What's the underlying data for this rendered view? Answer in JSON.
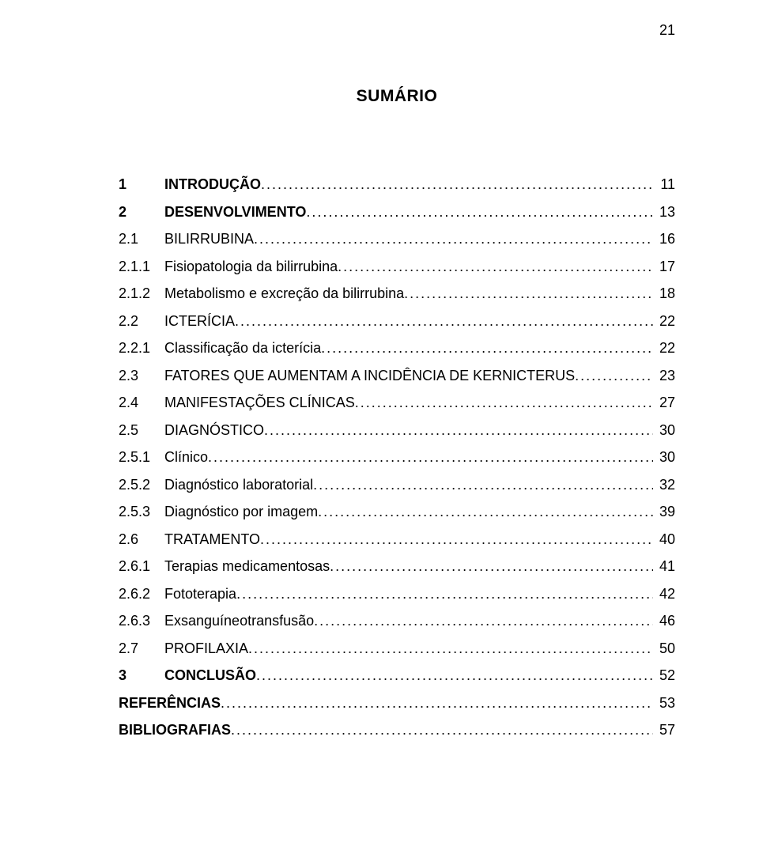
{
  "page_number": "21",
  "title": "SUMÁRIO",
  "toc": [
    {
      "num": "1",
      "label": "INTRODUÇÃO",
      "page": "11",
      "bold": true
    },
    {
      "num": "2",
      "label": "DESENVOLVIMENTO",
      "page": "13",
      "bold": true
    },
    {
      "num": "2.1",
      "label": "BILIRRUBINA",
      "page": "16",
      "bold": false
    },
    {
      "num": "2.1.1",
      "label": "Fisiopatologia da bilirrubina",
      "page": "17",
      "bold": false
    },
    {
      "num": "2.1.2",
      "label": "Metabolismo e excreção da bilirrubina",
      "page": "18",
      "bold": false
    },
    {
      "num": "2.2",
      "label": "ICTERÍCIA",
      "page": "22",
      "bold": false
    },
    {
      "num": "2.2.1",
      "label": "Classificação da icterícia",
      "page": "22",
      "bold": false
    },
    {
      "num": "2.3",
      "label": "FATORES QUE AUMENTAM A INCIDÊNCIA DE KERNICTERUS",
      "page": "23",
      "bold": false
    },
    {
      "num": "2.4",
      "label": "MANIFESTAÇÕES CLÍNICAS",
      "page": "27",
      "bold": false
    },
    {
      "num": "2.5",
      "label": "DIAGNÓSTICO",
      "page": "30",
      "bold": false
    },
    {
      "num": "2.5.1",
      "label": "Clínico",
      "page": "30",
      "bold": false
    },
    {
      "num": "2.5.2",
      "label": "Diagnóstico laboratorial",
      "page": "32",
      "bold": false
    },
    {
      "num": "2.5.3",
      "label": "Diagnóstico por imagem",
      "page": "39",
      "bold": false
    },
    {
      "num": "2.6",
      "label": "TRATAMENTO",
      "page": "40",
      "bold": false
    },
    {
      "num": "2.6.1",
      "label": "Terapias medicamentosas",
      "page": "41",
      "bold": false
    },
    {
      "num": "2.6.2",
      "label": "Fototerapia",
      "page": "42",
      "bold": false
    },
    {
      "num": "2.6.3",
      "label": "Exsanguíneotransfusão",
      "page": "46",
      "bold": false
    },
    {
      "num": "2.7",
      "label": "PROFILAXIA",
      "page": "50",
      "bold": false
    },
    {
      "num": "3",
      "label": "CONCLUSÃO",
      "page": "52",
      "bold": true
    },
    {
      "num": "",
      "label": "REFERÊNCIAS",
      "page": "53",
      "bold": true
    },
    {
      "num": "",
      "label": "BIBLIOGRAFIAS",
      "page": "57",
      "bold": true
    }
  ]
}
